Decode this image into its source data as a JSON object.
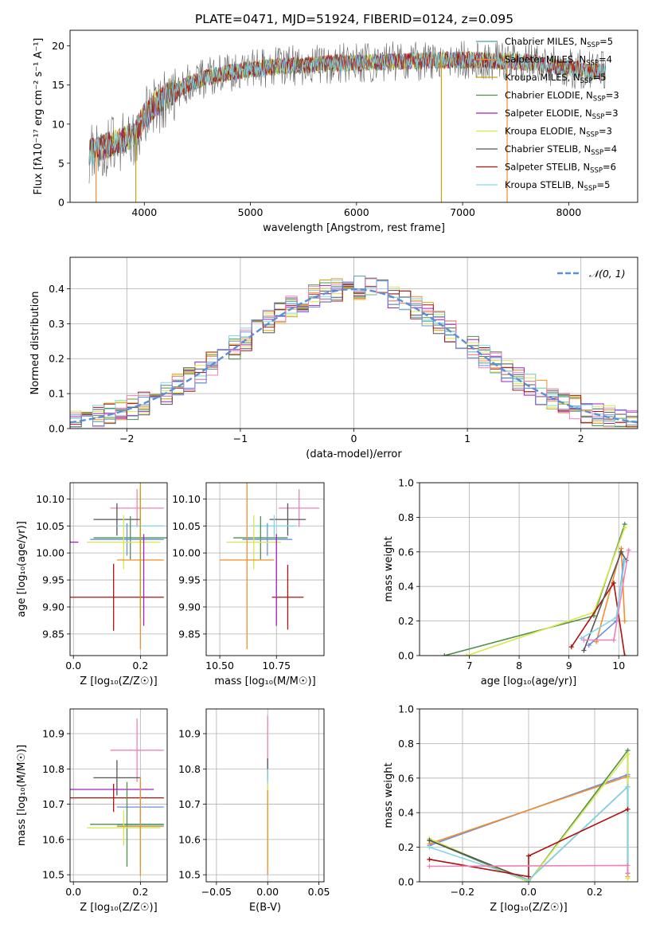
{
  "figure_title": "PLATE=0471, MJD=51924, FIBERID=0124, z=0.095",
  "palette": {
    "chabrier_miles": "#4c9fa6",
    "salpeter_miles": "#f28e2b",
    "kroupa_miles": "#c9a10c",
    "chabrier_elodie": "#4e8f4e",
    "salpeter_elodie": "#a020c0",
    "kroupa_elodie": "#d8e84a",
    "chabrier_stelib": "#555555",
    "salpeter_stelib": "#b01010",
    "kroupa_stelib": "#7fd8e8",
    "gaussian": "#5b8fd9",
    "pink": "#f080b8",
    "blue": "#6a8fe0"
  },
  "chart_data": [
    {
      "type": "line",
      "panel": "spectrum",
      "title": "PLATE=0471, MJD=51924, FIBERID=0124, z=0.095",
      "xlabel": "wavelength [Angstrom, rest frame]",
      "ylabel": "Flux [fλ10⁻¹⁷ erg cm⁻² s⁻¹ A⁻¹]",
      "xlim": [
        3300,
        8650
      ],
      "ylim": [
        0,
        22
      ],
      "xticks": [
        "4000",
        "5000",
        "6000",
        "7000",
        "8000"
      ],
      "yticks": [
        "0",
        "5",
        "10",
        "15",
        "20"
      ],
      "legend_position": "right",
      "legend": [
        {
          "label": "Chabrier MILES, N",
          "sub": "SSP",
          "suffix": "=5",
          "color": "#4c9fa6"
        },
        {
          "label": "Salpeter MILES, N",
          "sub": "SSP",
          "suffix": "=4",
          "color": "#f28e2b"
        },
        {
          "label": "Kroupa MILES, N",
          "sub": "SSP",
          "suffix": "=5",
          "color": "#c9a10c"
        },
        {
          "label": "Chabrier ELODIE, N",
          "sub": "SSP",
          "suffix": "=3",
          "color": "#4e8f4e"
        },
        {
          "label": "Salpeter ELODIE, N",
          "sub": "SSP",
          "suffix": "=3",
          "color": "#a020c0"
        },
        {
          "label": "Kroupa ELODIE, N",
          "sub": "SSP",
          "suffix": "=3",
          "color": "#d8e84a"
        },
        {
          "label": "Chabrier STELIB, N",
          "sub": "SSP",
          "suffix": "=4",
          "color": "#555555"
        },
        {
          "label": "Salpeter STELIB, N",
          "sub": "SSP",
          "suffix": "=6",
          "color": "#b01010"
        },
        {
          "label": "Kroupa STELIB, N",
          "sub": "SSP",
          "suffix": "=5",
          "color": "#7fd8e8"
        }
      ],
      "continuum": {
        "x": [
          3500,
          3600,
          3700,
          3800,
          3900,
          4000,
          4100,
          4200,
          4300,
          4400,
          4500,
          4600,
          4700,
          4800,
          4900,
          5000,
          5200,
          5400,
          5600,
          5800,
          6000,
          6200,
          6400,
          6600,
          6800,
          7000,
          7200,
          7400,
          7600,
          7800,
          8000,
          8200,
          8350
        ],
        "y": [
          6.5,
          7.0,
          7.5,
          8.0,
          8.6,
          11.0,
          12.5,
          13.5,
          14.2,
          15.0,
          15.6,
          16.0,
          16.3,
          16.6,
          16.8,
          17.0,
          17.3,
          17.5,
          17.6,
          17.8,
          17.8,
          17.9,
          18.0,
          18.1,
          18.2,
          18.2,
          18.1,
          18.0,
          17.9,
          17.5,
          17.2,
          16.8,
          16.7
        ]
      },
      "drop_lines": [
        {
          "x": 3545,
          "color": "#f28e2b"
        },
        {
          "x": 3920,
          "color": "#c9a10c"
        },
        {
          "x": 6800,
          "color": "#c9a10c"
        },
        {
          "x": 7420,
          "color": "#f28e2b"
        }
      ]
    },
    {
      "type": "step",
      "panel": "residuals",
      "xlabel": "(data-model)/error",
      "ylabel": "Normed distribution",
      "xlim": [
        -2.5,
        2.5
      ],
      "ylim": [
        0,
        0.49
      ],
      "xticks": [
        "−2",
        "−1",
        "0",
        "1",
        "2"
      ],
      "yticks": [
        "0.0",
        "0.1",
        "0.2",
        "0.3",
        "0.4"
      ],
      "legend_position": "top-right",
      "legend": [
        {
          "label": "𝒩(0, 1)",
          "color": "#5b8fd9"
        }
      ],
      "gaussian": {
        "mu": 0,
        "sigma": 1
      }
    },
    {
      "type": "errorbar",
      "panel": "z-age",
      "xlabel": "Z [log₁₀(Z/Z☉)]",
      "ylabel": "age  [log₁₀(age/yr)]",
      "xlim": [
        -0.01,
        0.28
      ],
      "ylim": [
        9.81,
        10.13
      ],
      "xticks": [
        "0.0",
        "0.2"
      ],
      "yticks": [
        "9.85",
        "9.90",
        "9.95",
        "10.00",
        "10.05",
        "10.10"
      ],
      "points": [
        {
          "x": 0.19,
          "y": 10.083,
          "xerr": 0.08,
          "yerr": 0.035,
          "color": "#f080b8"
        },
        {
          "x": 0.13,
          "y": 10.062,
          "xerr": 0.07,
          "yerr": 0.03,
          "color": "#555555"
        },
        {
          "x": 0.2,
          "y": 10.05,
          "xerr": 0.07,
          "yerr": 0.02,
          "color": "#7fd8e8"
        },
        {
          "x": 0.17,
          "y": 10.028,
          "xerr": 0.11,
          "yerr": 0.04,
          "color": "#4e8f4e"
        },
        {
          "x": 0.16,
          "y": 10.025,
          "xerr": 0.11,
          "yerr": 0.03,
          "color": "#6a8fe0"
        },
        {
          "x": 0.0,
          "y": 10.02,
          "xerr": 0.015,
          "yerr": 0.0,
          "color": "#a020c0"
        },
        {
          "x": 0.15,
          "y": 10.02,
          "xerr": 0.11,
          "yerr": 0.05,
          "color": "#d8e84a"
        },
        {
          "x": 0.2,
          "y": 9.987,
          "xerr": 0.07,
          "yerr": 0.165,
          "color": "#f28e2b"
        },
        {
          "x": 0.12,
          "y": 9.918,
          "xerr": 0.15,
          "yerr": 0.062,
          "color": "#b01010"
        },
        {
          "x": 0.21,
          "y": 9.95,
          "xerr": 0.0,
          "yerr": 0.085,
          "color": "#a020c0"
        },
        {
          "x": 0.2,
          "y": 10.0,
          "xerr": 0.0,
          "yerr": 0.12,
          "color": "#c9a10c"
        }
      ]
    },
    {
      "type": "errorbar",
      "panel": "mass-age",
      "xlabel": "mass [log₁₀(M/M☉)]",
      "ylabel": "",
      "xlim": [
        10.44,
        10.96
      ],
      "ylim": [
        9.81,
        10.13
      ],
      "xticks": [
        "10.50",
        "10.75"
      ],
      "yticks": [
        "9.85",
        "9.90",
        "9.95",
        "10.00",
        "10.05",
        "10.10"
      ],
      "points": [
        {
          "x": 10.85,
          "y": 10.083,
          "xerr": 0.09,
          "yerr": 0.035,
          "color": "#f080b8"
        },
        {
          "x": 10.8,
          "y": 10.062,
          "xerr": 0.08,
          "yerr": 0.03,
          "color": "#555555"
        },
        {
          "x": 10.74,
          "y": 10.05,
          "xerr": 0.1,
          "yerr": 0.02,
          "color": "#7fd8e8"
        },
        {
          "x": 10.68,
          "y": 10.028,
          "xerr": 0.12,
          "yerr": 0.04,
          "color": "#4e8f4e"
        },
        {
          "x": 10.71,
          "y": 10.025,
          "xerr": 0.11,
          "yerr": 0.03,
          "color": "#6a8fe0"
        },
        {
          "x": 10.65,
          "y": 10.02,
          "xerr": 0.12,
          "yerr": 0.05,
          "color": "#d8e84a"
        },
        {
          "x": 10.62,
          "y": 9.987,
          "xerr": 0.12,
          "yerr": 0.165,
          "color": "#f28e2b"
        },
        {
          "x": 10.8,
          "y": 9.918,
          "xerr": 0.07,
          "yerr": 0.06,
          "color": "#b01010"
        },
        {
          "x": 10.75,
          "y": 9.95,
          "xerr": 0.0,
          "yerr": 0.085,
          "color": "#a020c0"
        }
      ]
    },
    {
      "type": "line",
      "panel": "age-weight",
      "xlabel": "age  [log₁₀(age/yr)]",
      "ylabel": "mass weight",
      "xlim": [
        6.0,
        10.38
      ],
      "ylim": [
        0.0,
        1.0
      ],
      "xticks": [
        "7",
        "8",
        "9",
        "10"
      ],
      "yticks": [
        "0.0",
        "0.2",
        "0.4",
        "0.6",
        "0.8",
        "1.0"
      ],
      "series": [
        {
          "color": "#4e8f4e",
          "x": [
            6.5,
            9.5,
            10.12
          ],
          "y": [
            0.0,
            0.23,
            0.76
          ]
        },
        {
          "color": "#d8e84a",
          "x": [
            6.95,
            9.5,
            10.12
          ],
          "y": [
            0.0,
            0.25,
            0.74
          ]
        },
        {
          "color": "#f28e2b",
          "x": [
            9.55,
            10.05,
            10.12
          ],
          "y": [
            0.08,
            0.62,
            0.2
          ]
        },
        {
          "color": "#b01010",
          "x": [
            9.05,
            9.9,
            10.12
          ],
          "y": [
            0.05,
            0.42,
            0.0
          ]
        },
        {
          "color": "#555555",
          "x": [
            9.3,
            10.05,
            10.15
          ],
          "y": [
            0.03,
            0.6,
            0.55
          ]
        },
        {
          "color": "#6a8fe0",
          "x": [
            9.4,
            9.95,
            10.1
          ],
          "y": [
            0.06,
            0.2,
            0.55
          ]
        },
        {
          "color": "#7fd8e8",
          "x": [
            9.25,
            9.95,
            10.12
          ],
          "y": [
            0.1,
            0.22,
            0.55
          ]
        },
        {
          "color": "#f080b8",
          "x": [
            9.3,
            9.9,
            10.2
          ],
          "y": [
            0.09,
            0.09,
            0.61
          ]
        }
      ]
    },
    {
      "type": "errorbar",
      "panel": "z-mass",
      "xlabel": "Z [log₁₀(Z/Z☉)]",
      "ylabel": "mass [log₁₀(M/M☉)]",
      "xlim": [
        -0.01,
        0.28
      ],
      "ylim": [
        10.48,
        10.97
      ],
      "xticks": [
        "0.0",
        "0.2"
      ],
      "yticks": [
        "10.5",
        "10.6",
        "10.7",
        "10.8",
        "10.9"
      ],
      "points": [
        {
          "x": 0.19,
          "y": 10.853,
          "xerr": 0.08,
          "yerr": 0.09,
          "color": "#f080b8"
        },
        {
          "x": 0.13,
          "y": 10.775,
          "xerr": 0.07,
          "yerr": 0.05,
          "color": "#555555"
        },
        {
          "x": 0.1,
          "y": 10.742,
          "xerr": 0.14,
          "yerr": 0.0,
          "color": "#a020c0"
        },
        {
          "x": 0.12,
          "y": 10.718,
          "xerr": 0.15,
          "yerr": 0.04,
          "color": "#b01010"
        },
        {
          "x": 0.2,
          "y": 10.692,
          "xerr": 0.07,
          "yerr": 0.07,
          "color": "#6a8fe0"
        },
        {
          "x": 0.2,
          "y": 10.64,
          "xerr": 0.07,
          "yerr": 0.12,
          "color": "#7fd8e8"
        },
        {
          "x": 0.16,
          "y": 10.643,
          "xerr": 0.11,
          "yerr": 0.12,
          "color": "#4e8f4e"
        },
        {
          "x": 0.15,
          "y": 10.633,
          "xerr": 0.11,
          "yerr": 0.05,
          "color": "#d8e84a"
        },
        {
          "x": 0.2,
          "y": 10.637,
          "xerr": 0.07,
          "yerr": 0.14,
          "color": "#f28e2b"
        }
      ]
    },
    {
      "type": "errorbar",
      "panel": "ebv-mass",
      "xlabel": "E(B-V)",
      "ylabel": "",
      "xlim": [
        -0.06,
        0.055
      ],
      "ylim": [
        10.48,
        10.97
      ],
      "xticks": [
        "−0.05",
        "0.00",
        "0.05"
      ],
      "yticks": [
        "10.5",
        "10.6",
        "10.7",
        "10.8",
        "10.9"
      ],
      "points": [
        {
          "x": 0.0,
          "y": 10.85,
          "xerr": 0.0,
          "yerr": 0.1,
          "color": "#f080b8"
        },
        {
          "x": 0.0,
          "y": 10.8,
          "xerr": 0.0,
          "yerr": 0.03,
          "color": "#555555"
        },
        {
          "x": 0.0,
          "y": 10.72,
          "xerr": 0.0,
          "yerr": 0.08,
          "color": "#7fd8e8"
        },
        {
          "x": 0.0,
          "y": 10.64,
          "xerr": 0.0,
          "yerr": 0.12,
          "color": "#d8e84a"
        },
        {
          "x": 0.0,
          "y": 10.62,
          "xerr": 0.0,
          "yerr": 0.12,
          "color": "#f28e2b"
        }
      ]
    },
    {
      "type": "line",
      "panel": "z-weight",
      "xlabel": "Z [log₁₀(Z/Z☉)]",
      "ylabel": "mass weight",
      "xlim": [
        -0.33,
        0.33
      ],
      "ylim": [
        0.0,
        1.0
      ],
      "xticks": [
        "−0.2",
        "0.0",
        "0.2"
      ],
      "yticks": [
        "0.0",
        "0.2",
        "0.4",
        "0.6",
        "0.8",
        "1.0"
      ],
      "series": [
        {
          "color": "#6a8fe0",
          "x": [
            -0.3,
            0.3,
            0.3
          ],
          "y": [
            0.21,
            0.62,
            0.61
          ]
        },
        {
          "color": "#f28e2b",
          "x": [
            -0.3,
            0.3,
            0.3
          ],
          "y": [
            0.22,
            0.61,
            0.03
          ]
        },
        {
          "color": "#4e8f4e",
          "x": [
            -0.3,
            0.0,
            0.3,
            0.3
          ],
          "y": [
            0.24,
            0.0,
            0.76,
            0.05
          ]
        },
        {
          "color": "#d8e84a",
          "x": [
            -0.3,
            0.0,
            0.3,
            0.3
          ],
          "y": [
            0.25,
            0.0,
            0.74,
            0.02
          ]
        },
        {
          "color": "#555555",
          "x": [
            -0.3,
            0.0,
            0.3,
            0.3
          ],
          "y": [
            0.24,
            0.01,
            0.55,
            0.05
          ]
        },
        {
          "color": "#7fd8e8",
          "x": [
            -0.3,
            0.0,
            0.3,
            0.3
          ],
          "y": [
            0.2,
            0.01,
            0.55,
            0.05
          ]
        },
        {
          "color": "#b01010",
          "x": [
            -0.3,
            0.0,
            0.0,
            0.3
          ],
          "y": [
            0.13,
            0.03,
            0.15,
            0.42
          ]
        },
        {
          "color": "#f080b8",
          "x": [
            -0.3,
            0.3,
            0.3
          ],
          "y": [
            0.09,
            0.095,
            0.05
          ]
        }
      ]
    }
  ]
}
